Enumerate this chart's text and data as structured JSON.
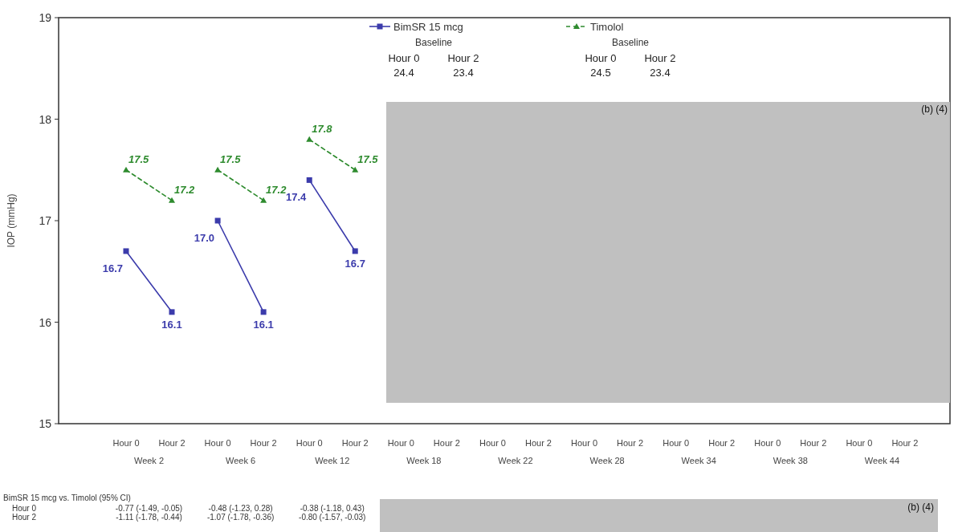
{
  "chart_data": {
    "type": "line",
    "ylabel": "IOP (mmHg)",
    "ylim": [
      15,
      19
    ],
    "yticks": [
      15,
      16,
      17,
      18,
      19
    ],
    "legend": "top",
    "categories": [
      "Hour 0",
      "Hour 2",
      "Hour 0",
      "Hour 2",
      "Hour 0",
      "Hour 2",
      "Hour 0",
      "Hour 2",
      "Hour 0",
      "Hour 2",
      "Hour 0",
      "Hour 2",
      "Hour 0",
      "Hour 2",
      "Hour 0",
      "Hour 2",
      "Hour 0",
      "Hour 2"
    ],
    "series": [
      {
        "name": "BimSR 15 mcg",
        "color": "#3b3bab",
        "marker": "square",
        "line_style": "solid",
        "values": [
          16.7,
          16.1,
          17.0,
          16.1,
          17.4,
          16.7,
          null,
          null,
          null,
          null,
          null,
          null,
          null,
          null,
          null,
          null,
          null,
          null
        ],
        "value_labels": [
          "16.7",
          "16.1",
          "17.0",
          "16.1",
          "17.4",
          "16.7",
          null,
          null,
          null,
          null,
          null,
          null,
          null,
          null,
          null,
          null,
          null,
          null
        ]
      },
      {
        "name": "Timolol",
        "color": "#2e8b2e",
        "marker": "triangle",
        "line_style": "dashed",
        "values": [
          17.5,
          17.2,
          17.5,
          17.2,
          17.8,
          17.5,
          null,
          null,
          null,
          null,
          null,
          null,
          null,
          null,
          null,
          null,
          null,
          null
        ],
        "value_labels": [
          "17.5",
          "17.2",
          "17.5",
          "17.2",
          "17.8",
          "17.5",
          null,
          null,
          null,
          null,
          null,
          null,
          null,
          null,
          null,
          null,
          null,
          null
        ]
      }
    ],
    "annotations": [
      "Week 2",
      "Week 6",
      "Week 12",
      "Week 18",
      "Week 22",
      "Week 28",
      "Week 34",
      "Week 38",
      "Week 44",
      "Baseline",
      "Hour 0",
      "Hour 2",
      "24.4",
      "23.4",
      "Baseline",
      "Hour 0",
      "Hour 2",
      "24.5",
      "23.4",
      "BimSR 15 mcg vs. Timolol (95% CI)",
      "Hour 0",
      "-0.77 (-1.49, -0.05)",
      "-0.48 (-1.23, 0.28)",
      "-0.38 (-1.18, 0.43)",
      "Hour 2",
      "-1.11 (-1.78, -0.44)",
      "-1.07 (-1.78, -0.36)",
      "-0.80 (-1.57, -0.03)",
      "(b) (4)",
      "(b) (4)"
    ]
  }
}
